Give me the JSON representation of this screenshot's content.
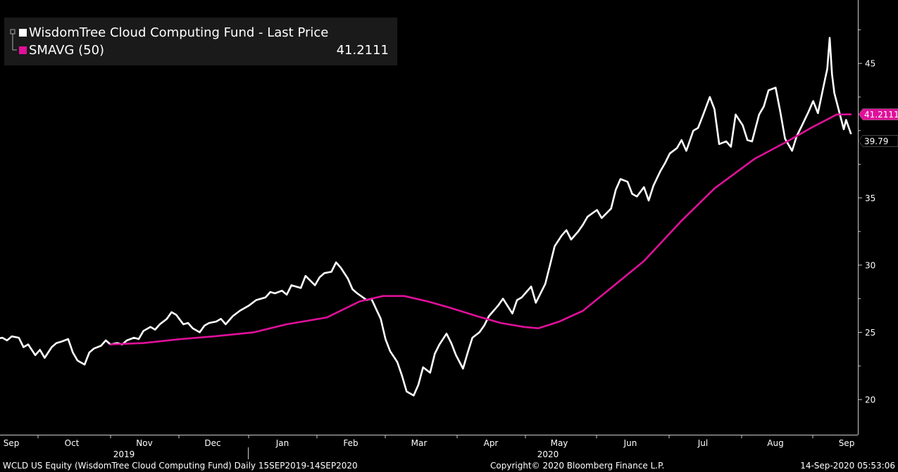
{
  "legend": {
    "series1_label": "WisdomTree Cloud Computing Fund - Last Price",
    "series2_label": "SMAVG (50)",
    "series2_value": "41.2111"
  },
  "footer": {
    "left": "WCLD US Equity (WisdomTree Cloud Computing Fund)  Daily 15SEP2019-14SEP2020",
    "center": "Copyright© 2020 Bloomberg Finance L.P.",
    "right": "14-Sep-2020 05:53:06"
  },
  "colors": {
    "background": "#000000",
    "price": "#ffffff",
    "sma": "#e0109a",
    "axis": "#cccccc",
    "legend_bg": "#1a1a1a"
  },
  "chart_data": {
    "type": "line",
    "x_months": [
      "Sep",
      "Oct",
      "Nov",
      "Dec",
      "Jan",
      "Feb",
      "Mar",
      "Apr",
      "May",
      "Jun",
      "Jul",
      "Aug",
      "Sep"
    ],
    "x_years": [
      "2019",
      "2020"
    ],
    "y_ticks": [
      20,
      25,
      30,
      35,
      45
    ],
    "ylim": [
      17.5,
      49
    ],
    "grid": false,
    "legend_position": "top-left",
    "last_price_label": "39.79",
    "sma_label": "41.2111",
    "series": [
      {
        "name": "WisdomTree Cloud Computing Fund - Last Price",
        "color": "#ffffff",
        "points": [
          [
            "2019-09-13",
            24.5
          ],
          [
            "2019-09-16",
            24.6
          ],
          [
            "2019-09-18",
            24.4
          ],
          [
            "2019-09-20",
            24.7
          ],
          [
            "2019-09-23",
            24.6
          ],
          [
            "2019-09-25",
            23.9
          ],
          [
            "2019-09-27",
            24.1
          ],
          [
            "2019-09-30",
            23.3
          ],
          [
            "2019-10-02",
            23.7
          ],
          [
            "2019-10-04",
            23.1
          ],
          [
            "2019-10-07",
            23.9
          ],
          [
            "2019-10-09",
            24.2
          ],
          [
            "2019-10-11",
            24.3
          ],
          [
            "2019-10-14",
            24.5
          ],
          [
            "2019-10-16",
            23.5
          ],
          [
            "2019-10-18",
            22.9
          ],
          [
            "2019-10-21",
            22.6
          ],
          [
            "2019-10-23",
            23.5
          ],
          [
            "2019-10-25",
            23.8
          ],
          [
            "2019-10-28",
            24.0
          ],
          [
            "2019-10-30",
            24.4
          ],
          [
            "2019-11-01",
            24.1
          ],
          [
            "2019-11-04",
            24.2
          ],
          [
            "2019-11-06",
            24.1
          ],
          [
            "2019-11-08",
            24.4
          ],
          [
            "2019-11-11",
            24.6
          ],
          [
            "2019-11-13",
            24.5
          ],
          [
            "2019-11-15",
            25.1
          ],
          [
            "2019-11-18",
            25.4
          ],
          [
            "2019-11-20",
            25.2
          ],
          [
            "2019-11-22",
            25.6
          ],
          [
            "2019-11-25",
            26.0
          ],
          [
            "2019-11-27",
            26.5
          ],
          [
            "2019-11-29",
            26.3
          ],
          [
            "2019-12-02",
            25.6
          ],
          [
            "2019-12-04",
            25.7
          ],
          [
            "2019-12-06",
            25.3
          ],
          [
            "2019-12-09",
            25.0
          ],
          [
            "2019-12-11",
            25.5
          ],
          [
            "2019-12-13",
            25.7
          ],
          [
            "2019-12-16",
            25.8
          ],
          [
            "2019-12-18",
            26.0
          ],
          [
            "2019-12-20",
            25.6
          ],
          [
            "2019-12-23",
            26.2
          ],
          [
            "2019-12-26",
            26.6
          ],
          [
            "2019-12-30",
            27.0
          ],
          [
            "2020-01-02",
            27.4
          ],
          [
            "2020-01-06",
            27.6
          ],
          [
            "2020-01-08",
            28.0
          ],
          [
            "2020-01-10",
            27.9
          ],
          [
            "2020-01-13",
            28.1
          ],
          [
            "2020-01-15",
            27.8
          ],
          [
            "2020-01-17",
            28.5
          ],
          [
            "2020-01-21",
            28.3
          ],
          [
            "2020-01-23",
            29.2
          ],
          [
            "2020-01-27",
            28.5
          ],
          [
            "2020-01-29",
            29.1
          ],
          [
            "2020-01-31",
            29.4
          ],
          [
            "2020-02-03",
            29.5
          ],
          [
            "2020-02-05",
            30.2
          ],
          [
            "2020-02-07",
            29.8
          ],
          [
            "2020-02-10",
            29.0
          ],
          [
            "2020-02-12",
            28.2
          ],
          [
            "2020-02-14",
            27.9
          ],
          [
            "2020-02-18",
            27.4
          ],
          [
            "2020-02-20",
            27.5
          ],
          [
            "2020-02-24",
            26.0
          ],
          [
            "2020-02-26",
            24.5
          ],
          [
            "2020-02-28",
            23.6
          ],
          [
            "2020-03-02",
            22.8
          ],
          [
            "2020-03-04",
            21.8
          ],
          [
            "2020-03-06",
            20.6
          ],
          [
            "2020-03-09",
            20.3
          ],
          [
            "2020-03-11",
            21.1
          ],
          [
            "2020-03-13",
            22.4
          ],
          [
            "2020-03-16",
            22.0
          ],
          [
            "2020-03-18",
            23.4
          ],
          [
            "2020-03-20",
            24.1
          ],
          [
            "2020-03-23",
            24.9
          ],
          [
            "2020-03-25",
            24.2
          ],
          [
            "2020-03-27",
            23.3
          ],
          [
            "2020-03-30",
            22.3
          ],
          [
            "2020-04-01",
            23.5
          ],
          [
            "2020-04-03",
            24.6
          ],
          [
            "2020-04-06",
            25.0
          ],
          [
            "2020-04-08",
            25.5
          ],
          [
            "2020-04-10",
            26.2
          ],
          [
            "2020-04-14",
            27.0
          ],
          [
            "2020-04-16",
            27.5
          ],
          [
            "2020-04-20",
            26.4
          ],
          [
            "2020-04-22",
            27.4
          ],
          [
            "2020-04-24",
            27.6
          ],
          [
            "2020-04-28",
            28.4
          ],
          [
            "2020-04-30",
            27.2
          ],
          [
            "2020-05-04",
            28.6
          ],
          [
            "2020-05-06",
            30.0
          ],
          [
            "2020-05-08",
            31.4
          ],
          [
            "2020-05-11",
            32.2
          ],
          [
            "2020-05-13",
            32.6
          ],
          [
            "2020-05-15",
            31.9
          ],
          [
            "2020-05-18",
            32.5
          ],
          [
            "2020-05-20",
            33.0
          ],
          [
            "2020-05-22",
            33.6
          ],
          [
            "2020-05-26",
            34.1
          ],
          [
            "2020-05-28",
            33.5
          ],
          [
            "2020-06-01",
            34.2
          ],
          [
            "2020-06-03",
            35.6
          ],
          [
            "2020-06-05",
            36.4
          ],
          [
            "2020-06-08",
            36.2
          ],
          [
            "2020-06-10",
            35.3
          ],
          [
            "2020-06-12",
            35.1
          ],
          [
            "2020-06-15",
            35.8
          ],
          [
            "2020-06-17",
            34.8
          ],
          [
            "2020-06-19",
            35.9
          ],
          [
            "2020-06-22",
            37.0
          ],
          [
            "2020-06-24",
            37.6
          ],
          [
            "2020-06-26",
            38.3
          ],
          [
            "2020-06-29",
            38.7
          ],
          [
            "2020-07-01",
            39.3
          ],
          [
            "2020-07-03",
            38.5
          ],
          [
            "2020-07-06",
            40.0
          ],
          [
            "2020-07-08",
            40.2
          ],
          [
            "2020-07-10",
            41.1
          ],
          [
            "2020-07-13",
            42.5
          ],
          [
            "2020-07-15",
            41.6
          ],
          [
            "2020-07-17",
            39.0
          ],
          [
            "2020-07-20",
            39.2
          ],
          [
            "2020-07-22",
            38.8
          ],
          [
            "2020-07-24",
            41.2
          ],
          [
            "2020-07-27",
            40.4
          ],
          [
            "2020-07-29",
            39.3
          ],
          [
            "2020-07-31",
            39.2
          ],
          [
            "2020-08-03",
            41.2
          ],
          [
            "2020-08-05",
            41.8
          ],
          [
            "2020-08-07",
            43.0
          ],
          [
            "2020-08-10",
            43.2
          ],
          [
            "2020-08-12",
            41.4
          ],
          [
            "2020-08-14",
            39.4
          ],
          [
            "2020-08-17",
            38.5
          ],
          [
            "2020-08-19",
            39.6
          ],
          [
            "2020-08-21",
            40.3
          ],
          [
            "2020-08-24",
            41.4
          ],
          [
            "2020-08-26",
            42.2
          ],
          [
            "2020-08-28",
            41.3
          ],
          [
            "2020-08-31",
            43.8
          ],
          [
            "2020-09-01",
            44.6
          ],
          [
            "2020-09-02",
            46.9
          ],
          [
            "2020-09-03",
            44.2
          ],
          [
            "2020-09-04",
            42.8
          ],
          [
            "2020-09-08",
            40.1
          ],
          [
            "2020-09-09",
            40.8
          ],
          [
            "2020-09-11",
            39.79
          ]
        ]
      },
      {
        "name": "SMAVG (50)",
        "color": "#e0109a",
        "points": [
          [
            "2019-11-01",
            24.1
          ],
          [
            "2019-11-15",
            24.2
          ],
          [
            "2019-12-01",
            24.5
          ],
          [
            "2019-12-15",
            24.7
          ],
          [
            "2020-01-01",
            25.0
          ],
          [
            "2020-01-15",
            25.6
          ],
          [
            "2020-02-01",
            26.1
          ],
          [
            "2020-02-15",
            27.3
          ],
          [
            "2020-02-25",
            27.7
          ],
          [
            "2020-03-05",
            27.7
          ],
          [
            "2020-03-15",
            27.3
          ],
          [
            "2020-03-25",
            26.8
          ],
          [
            "2020-04-05",
            26.2
          ],
          [
            "2020-04-15",
            25.7
          ],
          [
            "2020-04-25",
            25.4
          ],
          [
            "2020-05-01",
            25.3
          ],
          [
            "2020-05-10",
            25.8
          ],
          [
            "2020-05-20",
            26.6
          ],
          [
            "2020-06-01",
            28.3
          ],
          [
            "2020-06-15",
            30.3
          ],
          [
            "2020-07-01",
            33.3
          ],
          [
            "2020-07-15",
            35.7
          ],
          [
            "2020-08-01",
            37.9
          ],
          [
            "2020-08-15",
            39.2
          ],
          [
            "2020-08-25",
            40.2
          ],
          [
            "2020-09-05",
            41.2
          ],
          [
            "2020-09-11",
            41.2111
          ]
        ]
      }
    ]
  }
}
